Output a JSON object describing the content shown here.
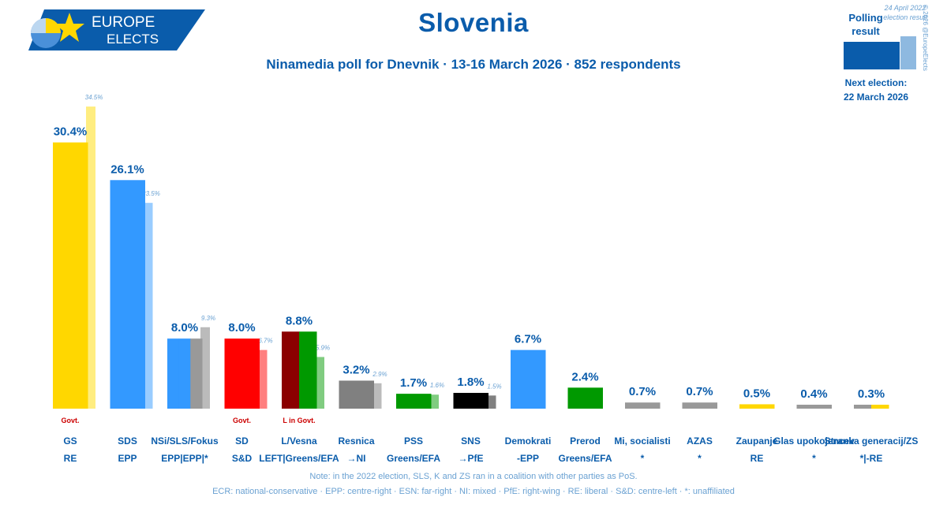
{
  "logo": {
    "line1": "EUROPE",
    "line2": "ELECTS"
  },
  "title": "Slovenia",
  "subtitle": "Ninamedia poll for Dnevnik · 13-16 March 2026 · 852 respondents",
  "legend": {
    "poll_label": "Polling result",
    "election_label": "24 April 2022 election result",
    "next_election_label": "Next election:",
    "next_election_date": "22 March 2026",
    "copyright": "© 2026 @EuropeElects",
    "poll_color": "#0a5cab",
    "election_color": "#8eb9e0"
  },
  "footnote1": "Note: in the 2022 election, SLS, K and ZS ran in a coalition with other parties as PoS.",
  "footnote2": "ECR: national-conservative · EPP: centre-right · ESN: far-right · NI: mixed · PfE: right-wing · RE: liberal · S&D: centre-left · *: unaffiliated",
  "chart_data": {
    "type": "bar",
    "ylim": [
      0,
      35
    ],
    "categories": [
      "GS",
      "SDS",
      "NSi/SLS/Fokus",
      "SD",
      "L/Vesna",
      "Resnica",
      "PSS",
      "SNS",
      "Demokrati",
      "Prerod",
      "Mi, socialisti",
      "AZAS",
      "Zaupanje",
      "Glas upokojencev",
      "Stranka generacij/ZS"
    ],
    "groups": [
      "RE",
      "EPP",
      "EPP|EPP|*",
      "S&D",
      "LEFT|Greens/EFA",
      "→NI",
      "Greens/EFA",
      "→PfE",
      "-EPP",
      "Greens/EFA",
      "*",
      "*",
      "RE",
      "*",
      "*|-RE"
    ],
    "poll_labels": [
      "30.4%",
      "26.1%",
      "8.0%",
      "8.0%",
      "8.8%",
      "3.2%",
      "1.7%",
      "1.8%",
      "6.7%",
      "2.4%",
      "0.7%",
      "0.7%",
      "0.5%",
      "0.4%",
      "0.3%"
    ],
    "poll_values": [
      30.4,
      26.1,
      8.0,
      8.0,
      8.8,
      3.2,
      1.7,
      1.8,
      6.7,
      2.4,
      0.7,
      0.7,
      0.5,
      0.4,
      0.3
    ],
    "election_labels": [
      "34.5%",
      "23.5%",
      "9.3%",
      "6.7%",
      "5.9%",
      "2.9%",
      "1.6%",
      "1.5%",
      "",
      "",
      "",
      "",
      "",
      "",
      ""
    ],
    "election_values": [
      34.5,
      23.5,
      9.3,
      6.7,
      5.9,
      2.9,
      1.6,
      1.5,
      null,
      null,
      null,
      null,
      null,
      null,
      null
    ],
    "notes": [
      "Govt.",
      "",
      "",
      "Govt.",
      "L in Govt.",
      "",
      "",
      "",
      "",
      "",
      "",
      "",
      "",
      "",
      ""
    ],
    "bar_colors": [
      [
        "#ffd700"
      ],
      [
        "#3399ff"
      ],
      [
        "#3399ff",
        "#3399ff",
        "#999999"
      ],
      [
        "#ff0000"
      ],
      [
        "#8b0000",
        "#009900"
      ],
      [
        "#808080"
      ],
      [
        "#009900"
      ],
      [
        "#000000"
      ],
      [
        "#3399ff"
      ],
      [
        "#009900"
      ],
      [
        "#999999"
      ],
      [
        "#999999"
      ],
      [
        "#ffd700"
      ],
      [
        "#999999"
      ],
      [
        "#999999",
        "#ffd700"
      ]
    ],
    "election_colors": [
      "#ffed80",
      "#99ccff",
      "#bbbbbb",
      "#ff7f7f",
      "#80cc80",
      "#bbbbbb",
      "#80cc80",
      "#808080",
      null,
      null,
      null,
      null,
      null,
      null,
      null
    ]
  }
}
